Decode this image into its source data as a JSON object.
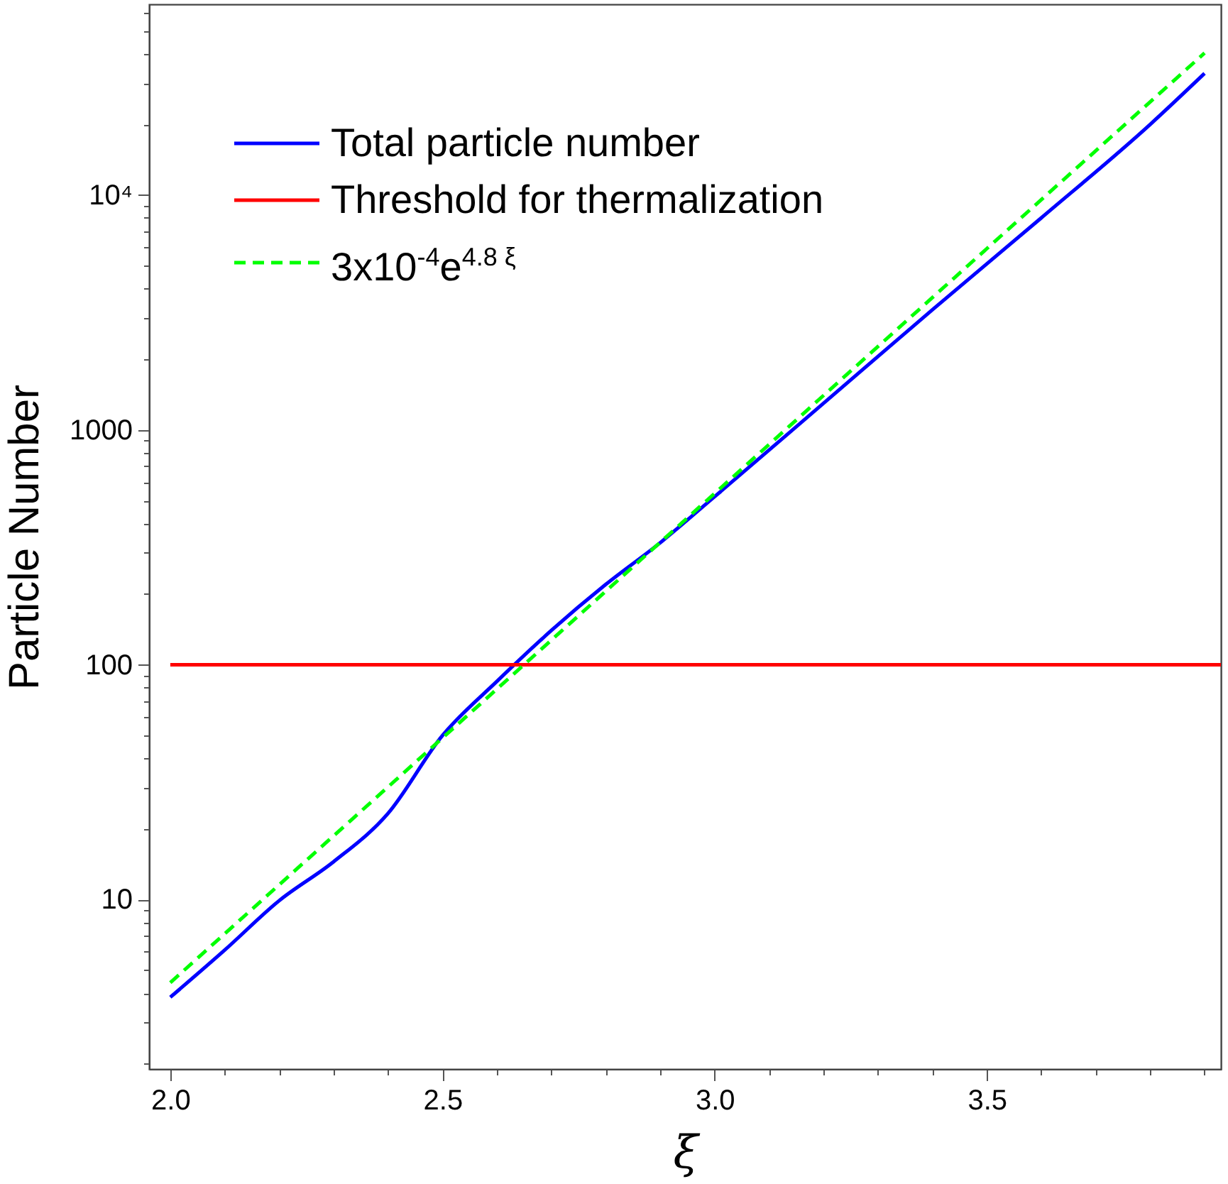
{
  "chart_data": {
    "type": "line",
    "xlabel": "ξ",
    "ylabel": "Particle Number",
    "xlim": [
      1.961,
      3.93
    ],
    "ylim": [
      1.9,
      65000
    ],
    "log": "y",
    "legend": "top left",
    "xticks": [
      {
        "value": 2,
        "label": "2.0"
      },
      {
        "value": 2.1,
        "label": null
      },
      {
        "value": 2.2,
        "label": null
      },
      {
        "value": 2.3,
        "label": null
      },
      {
        "value": 2.4,
        "label": null
      },
      2.5,
      {
        "value": 2.6,
        "label": null
      },
      {
        "value": 2.7,
        "label": null
      },
      {
        "value": 2.8,
        "label": null
      },
      {
        "value": 2.9,
        "label": null
      },
      {
        "value": 3,
        "label": "3.0"
      },
      {
        "value": 3.1,
        "label": null
      },
      {
        "value": 3.2,
        "label": null
      },
      {
        "value": 3.3,
        "label": null
      },
      {
        "value": 3.4,
        "label": null
      },
      3.5,
      {
        "value": 3.6,
        "label": null
      },
      {
        "value": 3.7,
        "label": null
      },
      {
        "value": 3.8,
        "label": null
      },
      {
        "value": 3.9,
        "label": null
      }
    ],
    "yticks": [
      {
        "value": 2,
        "label": null
      },
      {
        "value": 3,
        "label": null
      },
      {
        "value": 4,
        "label": null
      },
      {
        "value": 5,
        "label": null
      },
      {
        "value": 6,
        "label": null
      },
      {
        "value": 7,
        "label": null
      },
      {
        "value": 8,
        "label": null
      },
      {
        "value": 9,
        "label": null
      },
      10,
      {
        "value": 20,
        "label": null
      },
      {
        "value": 30,
        "label": null
      },
      {
        "value": 40,
        "label": null
      },
      {
        "value": 50,
        "label": null
      },
      {
        "value": 60,
        "label": null
      },
      {
        "value": 70,
        "label": null
      },
      {
        "value": 80,
        "label": null
      },
      {
        "value": 90,
        "label": null
      },
      100,
      {
        "value": 200,
        "label": null
      },
      {
        "value": 300,
        "label": null
      },
      {
        "value": 400,
        "label": null
      },
      {
        "value": 500,
        "label": null
      },
      {
        "value": 600,
        "label": null
      },
      {
        "value": 700,
        "label": null
      },
      {
        "value": 800,
        "label": null
      },
      {
        "value": 900,
        "label": null
      },
      1000,
      {
        "value": 2000,
        "label": null
      },
      {
        "value": 3000,
        "label": null
      },
      {
        "value": 4000,
        "label": null
      },
      {
        "value": 5000,
        "label": null
      },
      {
        "value": 6000,
        "label": null
      },
      {
        "value": 7000,
        "label": null
      },
      {
        "value": 8000,
        "label": null
      },
      {
        "value": 9000,
        "label": null
      },
      {
        "value": 10000,
        "label": "10⁴"
      },
      {
        "value": 20000,
        "label": null
      },
      {
        "value": 30000,
        "label": null
      },
      {
        "value": 40000,
        "label": null
      },
      {
        "value": 50000,
        "label": null
      },
      {
        "value": 60000,
        "label": null
      }
    ],
    "series": [
      {
        "name": "Total particle number",
        "color": "#0000ff",
        "line_style": "solid",
        "x": [
          2.0,
          2.1,
          2.2,
          2.3,
          2.4,
          2.5,
          2.6,
          2.7,
          2.8,
          2.9,
          3.0,
          3.2,
          3.4,
          3.6,
          3.8,
          3.9
        ],
        "values": [
          3.84,
          6.1,
          9.9,
          14.5,
          23.3,
          50,
          85,
          140,
          220,
          331,
          520,
          1300,
          3250,
          8000,
          20000,
          33000
        ]
      },
      {
        "name": "Threshold for thermalization",
        "color": "#ff0000",
        "line_style": "solid",
        "x": [
          2.0,
          3.93
        ],
        "values": [
          100,
          100
        ]
      },
      {
        "name": "3x10$^{-4}$e$^{4.8 ξ}$",
        "color": "#00ff00",
        "line_style": "dashed",
        "x": [
          2.0,
          2.5,
          3.0,
          3.5,
          3.9
        ],
        "values": [
          4.43,
          48.8,
          537,
          5920,
          40300
        ]
      }
    ]
  }
}
